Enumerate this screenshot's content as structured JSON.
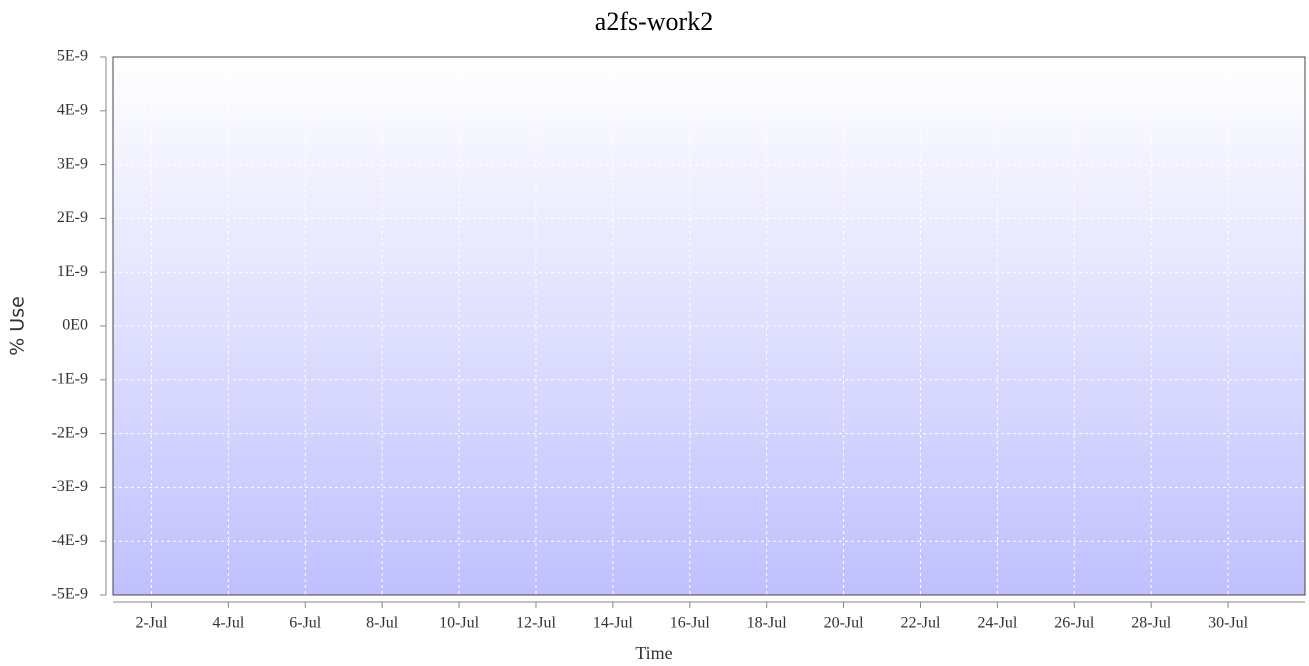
{
  "chart_data": {
    "type": "line",
    "title": "a2fs-work2",
    "x_label": "Time",
    "y_label": "% Use",
    "xlim": [
      1,
      32
    ],
    "xticks": [
      {
        "value": 2,
        "label": "2-Jul"
      },
      {
        "value": 4,
        "label": "4-Jul"
      },
      {
        "value": 6,
        "label": "6-Jul"
      },
      {
        "value": 8,
        "label": "8-Jul"
      },
      {
        "value": 10,
        "label": "10-Jul"
      },
      {
        "value": 12,
        "label": "12-Jul"
      },
      {
        "value": 14,
        "label": "14-Jul"
      },
      {
        "value": 16,
        "label": "16-Jul"
      },
      {
        "value": 18,
        "label": "18-Jul"
      },
      {
        "value": 20,
        "label": "20-Jul"
      },
      {
        "value": 22,
        "label": "22-Jul"
      },
      {
        "value": 24,
        "label": "24-Jul"
      },
      {
        "value": 26,
        "label": "26-Jul"
      },
      {
        "value": 28,
        "label": "28-Jul"
      },
      {
        "value": 30,
        "label": "30-Jul"
      }
    ],
    "ylim": [
      -5e-09,
      5e-09
    ],
    "yticks": [
      {
        "value": -5e-09,
        "label": "-5E-9"
      },
      {
        "value": -4e-09,
        "label": "-4E-9"
      },
      {
        "value": -3e-09,
        "label": "-3E-9"
      },
      {
        "value": -2e-09,
        "label": "-2E-9"
      },
      {
        "value": -1e-09,
        "label": "-1E-9"
      },
      {
        "value": 0,
        "label": "0E0"
      },
      {
        "value": 1e-09,
        "label": "1E-9"
      },
      {
        "value": 2e-09,
        "label": "2E-9"
      },
      {
        "value": 3e-09,
        "label": "3E-9"
      },
      {
        "value": 4e-09,
        "label": "4E-9"
      },
      {
        "value": 5e-09,
        "label": "5E-9"
      }
    ],
    "grid": true,
    "background_top": "#ffffff",
    "background_bottom": "#c0c0ff"
  }
}
